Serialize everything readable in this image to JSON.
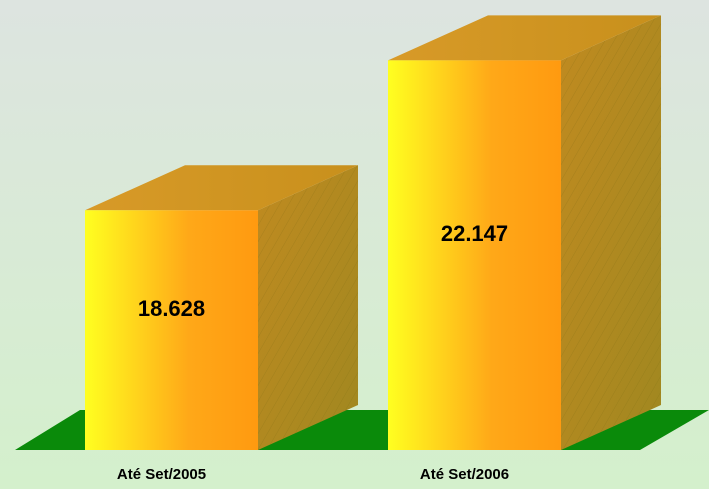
{
  "chart_data": {
    "type": "bar3d",
    "categories": [
      "Até Set/2005",
      "Até Set/2006"
    ],
    "values": [
      18628,
      22147
    ],
    "value_labels": [
      "18.628",
      "22.147"
    ],
    "ylim": [
      13000,
      23000
    ],
    "color": "#ffa500"
  }
}
